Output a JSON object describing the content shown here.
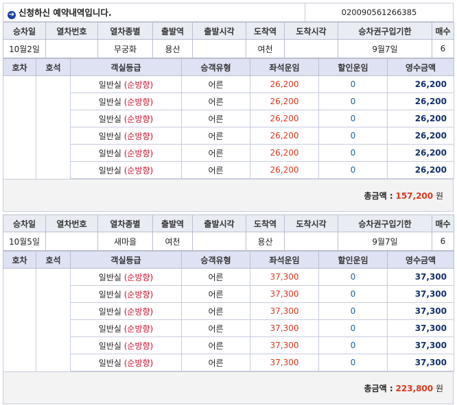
{
  "header": {
    "title": "신청하신 예약내역입니다.",
    "reservation_no": "020090561266385"
  },
  "columns_a": [
    "승차일",
    "열차번호",
    "열차종별",
    "출발역",
    "출발시각",
    "도착역",
    "도착시각",
    "승차권구입기한",
    "매수"
  ],
  "columns_b": [
    "호차",
    "호석",
    "객실등급",
    "승객유형",
    "좌석운임",
    "할인운임",
    "영수금액"
  ],
  "trips": [
    {
      "summary": {
        "date": "10월2일",
        "train_no": "",
        "train_type": "무궁화",
        "dep_station": "용산",
        "dep_time": "",
        "arr_station": "여천",
        "arr_time": "",
        "deadline": "9월7일",
        "count": "6"
      },
      "seats": [
        {
          "car": "",
          "seat": "",
          "grade": "일반실",
          "direction": "(순방향)",
          "type": "어른",
          "fare": "26,200",
          "discount": "0",
          "amount": "26,200"
        },
        {
          "car": "",
          "seat": "",
          "grade": "일반실",
          "direction": "(순방향)",
          "type": "어른",
          "fare": "26,200",
          "discount": "0",
          "amount": "26,200"
        },
        {
          "car": "",
          "seat": "",
          "grade": "일반실",
          "direction": "(순방향)",
          "type": "어른",
          "fare": "26,200",
          "discount": "0",
          "amount": "26,200"
        },
        {
          "car": "",
          "seat": "",
          "grade": "일반실",
          "direction": "(순방향)",
          "type": "어른",
          "fare": "26,200",
          "discount": "0",
          "amount": "26,200"
        },
        {
          "car": "",
          "seat": "",
          "grade": "일반실",
          "direction": "(순방향)",
          "type": "어른",
          "fare": "26,200",
          "discount": "0",
          "amount": "26,200"
        },
        {
          "car": "",
          "seat": "",
          "grade": "일반실",
          "direction": "(순방향)",
          "type": "어른",
          "fare": "26,200",
          "discount": "0",
          "amount": "26,200"
        }
      ],
      "total_label": "총금액 :",
      "total_value": "157,200",
      "total_unit": "원"
    },
    {
      "summary": {
        "date": "10월5일",
        "train_no": "",
        "train_type": "새마을",
        "dep_station": "여천",
        "dep_time": "",
        "arr_station": "용산",
        "arr_time": "",
        "deadline": "9월7일",
        "count": "6"
      },
      "seats": [
        {
          "car": "",
          "seat": "",
          "grade": "일반실",
          "direction": "(순방향)",
          "type": "어른",
          "fare": "37,300",
          "discount": "0",
          "amount": "37,300"
        },
        {
          "car": "",
          "seat": "",
          "grade": "일반실",
          "direction": "(순방향)",
          "type": "어른",
          "fare": "37,300",
          "discount": "0",
          "amount": "37,300"
        },
        {
          "car": "",
          "seat": "",
          "grade": "일반실",
          "direction": "(순방향)",
          "type": "어른",
          "fare": "37,300",
          "discount": "0",
          "amount": "37,300"
        },
        {
          "car": "",
          "seat": "",
          "grade": "일반실",
          "direction": "(순방향)",
          "type": "어른",
          "fare": "37,300",
          "discount": "0",
          "amount": "37,300"
        },
        {
          "car": "",
          "seat": "",
          "grade": "일반실",
          "direction": "(순방향)",
          "type": "어른",
          "fare": "37,300",
          "discount": "0",
          "amount": "37,300"
        },
        {
          "car": "",
          "seat": "",
          "grade": "일반실",
          "direction": "(순방향)",
          "type": "어른",
          "fare": "37,300",
          "discount": "0",
          "amount": "37,300"
        }
      ],
      "total_label": "총금액 :",
      "total_value": "223,800",
      "total_unit": "원"
    }
  ]
}
